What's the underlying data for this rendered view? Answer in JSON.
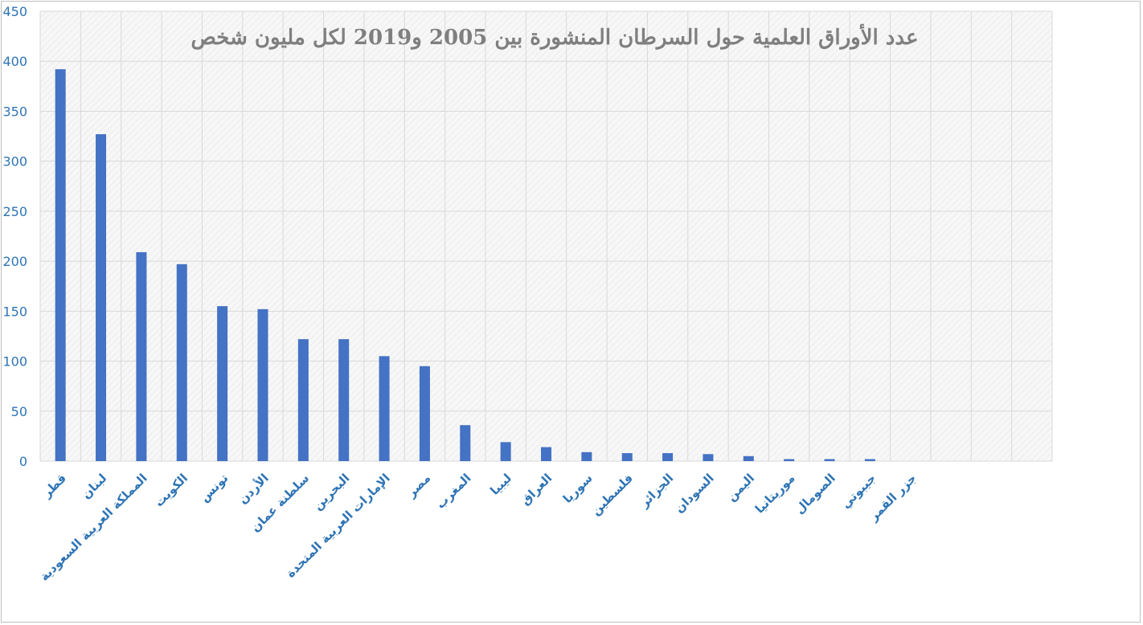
{
  "chart_data": {
    "type": "bar",
    "title": "عدد الأوراق العلمية حول السرطان المنشورة بين 2005 و2019 لكل مليون شخص",
    "categories": [
      "قطر",
      "لبنان",
      "المملكة العربية السعودية",
      "الكويت",
      "تونس",
      "الأردن",
      "سلطنة عمان",
      "البحرين",
      "الإمارات العربية المتحدة",
      "مصر",
      "المغرب",
      "ليبيا",
      "العراق",
      "سوريا",
      "فلسطين",
      "الجزائر",
      "السودان",
      "اليمن",
      "موريتانيا",
      "الصومال",
      "جيبوتي",
      "جزر القمر"
    ],
    "values": [
      392,
      327,
      209,
      197,
      155,
      152,
      122,
      122,
      105,
      95,
      36,
      19,
      14,
      9,
      8,
      8,
      7,
      5,
      2,
      2,
      2,
      0
    ],
    "ylim": [
      0,
      450
    ],
    "yticks": [
      "0",
      "50",
      "100",
      "150",
      "200",
      "250",
      "300",
      "350",
      "400",
      "450"
    ],
    "grid": true,
    "colors": {
      "bar": "#4472c4",
      "tick_text": "#2e74b5",
      "title": "#7f7f7f"
    }
  }
}
